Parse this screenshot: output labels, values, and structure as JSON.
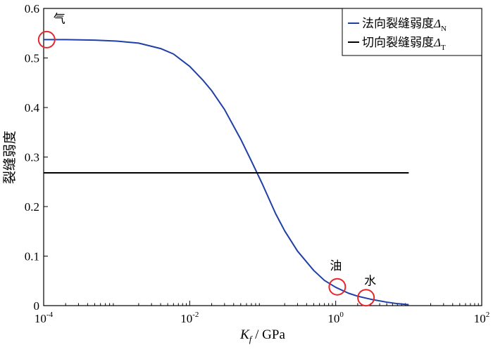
{
  "chart_data": {
    "type": "line",
    "xscale": "log",
    "xlim": [
      0.0001,
      100
    ],
    "ylim": [
      0,
      0.6
    ],
    "ylabel": "裂缝弱度",
    "xlabel": {
      "var": "K",
      "sub": "f",
      "unit": " / GPa"
    },
    "x_ticks": [
      {
        "value": 0.0001,
        "base": "10",
        "exp": "-4"
      },
      {
        "value": 0.01,
        "base": "10",
        "exp": "-2"
      },
      {
        "value": 1,
        "base": "10",
        "exp": "0"
      },
      {
        "value": 100,
        "base": "10",
        "exp": "2"
      }
    ],
    "y_ticks": [
      "0",
      "0.1",
      "0.2",
      "0.3",
      "0.4",
      "0.5",
      "0.6"
    ],
    "series": [
      {
        "name": "法向裂缝弱度",
        "symbol": "Δ",
        "symbol_sub": "N",
        "color": "#1f3fa6",
        "x": [
          0.0001,
          0.0002,
          0.0005,
          0.001,
          0.002,
          0.004,
          0.006,
          0.01,
          0.015,
          0.02,
          0.03,
          0.05,
          0.07,
          0.1,
          0.15,
          0.2,
          0.3,
          0.5,
          0.7,
          1,
          1.5,
          2,
          3,
          5,
          7,
          10
        ],
        "y": [
          0.537,
          0.537,
          0.536,
          0.534,
          0.53,
          0.519,
          0.508,
          0.483,
          0.456,
          0.434,
          0.396,
          0.336,
          0.292,
          0.244,
          0.186,
          0.151,
          0.11,
          0.071,
          0.051,
          0.037,
          0.025,
          0.019,
          0.013,
          0.007,
          0.004,
          0.002
        ]
      },
      {
        "name": "切向裂缝弱度",
        "symbol": "Δ",
        "symbol_sub": "T",
        "color": "#000000",
        "x": [
          0.0001,
          10
        ],
        "y": [
          0.268,
          0.268
        ]
      }
    ],
    "annotations": [
      {
        "label": "气",
        "x": 0.00011,
        "y": 0.537
      },
      {
        "label": "油",
        "x": 1.05,
        "y": 0.038
      },
      {
        "label": "水",
        "x": 2.6,
        "y": 0.016
      }
    ],
    "marker_color": "#e8262b",
    "legend_position": "top-right",
    "grid": false
  }
}
